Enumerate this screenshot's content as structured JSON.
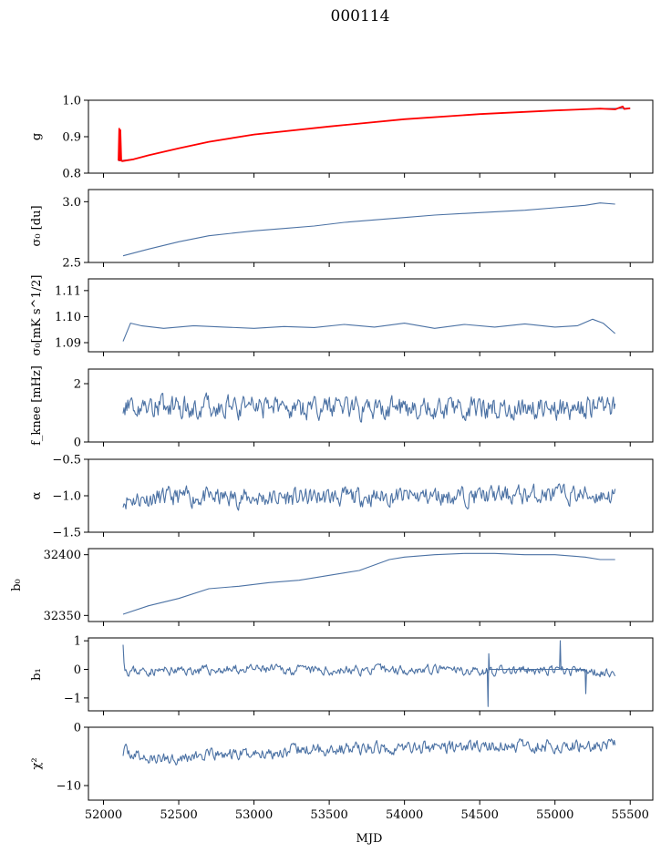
{
  "figure": {
    "title": "000114",
    "xlabel": "MJD"
  },
  "colors": {
    "series": "#4c72a4",
    "gain_overlay": "#ff0000"
  },
  "chart_data": [
    {
      "type": "line",
      "ylabel": "g",
      "ylim": [
        0.8,
        1.0
      ],
      "yticks": [
        0.8,
        0.9,
        1.0
      ],
      "ytick_labels": [
        "0.8",
        "0.9",
        "1.0"
      ],
      "xlim": [
        51900,
        55650
      ],
      "series": [
        {
          "color": "#4c72a4",
          "x": [
            52100,
            52200,
            52300,
            52500,
            52700,
            53000,
            53500,
            54000,
            54500,
            55000,
            55300,
            55500
          ],
          "y": [
            0.834,
            0.838,
            0.849,
            0.868,
            0.886,
            0.906,
            0.928,
            0.948,
            0.962,
            0.972,
            0.977,
            0.978
          ]
        },
        {
          "color": "#ff0000",
          "x": [
            52100,
            52105,
            52108,
            52112,
            52118,
            52125,
            52200,
            52300,
            52500,
            52700,
            53000,
            53500,
            54000,
            54500,
            55000,
            55300,
            55400,
            55450,
            55460,
            55500
          ],
          "y": [
            0.834,
            0.922,
            0.835,
            0.918,
            0.834,
            0.833,
            0.838,
            0.849,
            0.868,
            0.886,
            0.906,
            0.928,
            0.948,
            0.962,
            0.972,
            0.977,
            0.975,
            0.983,
            0.976,
            0.978
          ]
        }
      ]
    },
    {
      "type": "line",
      "ylabel": "σ₀ [du]",
      "ylim": [
        2.5,
        3.1
      ],
      "yticks": [
        2.5,
        3.0
      ],
      "ytick_labels": [
        "2.5",
        "3.0"
      ],
      "xlim": [
        51900,
        55650
      ],
      "series": [
        {
          "color": "#4c72a4",
          "x": [
            52130,
            52300,
            52500,
            52700,
            53000,
            53200,
            53400,
            53600,
            53800,
            54000,
            54200,
            54500,
            54800,
            55000,
            55200,
            55300,
            55400
          ],
          "y": [
            2.555,
            2.61,
            2.67,
            2.72,
            2.76,
            2.78,
            2.8,
            2.83,
            2.85,
            2.87,
            2.89,
            2.91,
            2.93,
            2.95,
            2.97,
            2.99,
            2.98
          ]
        }
      ]
    },
    {
      "type": "line",
      "ylabel": "σ₀[mK s^1/2]",
      "ylim": [
        1.0865,
        1.1145
      ],
      "yticks": [
        1.09,
        1.1,
        1.11
      ],
      "ytick_labels": [
        "1.09",
        "1.10",
        "1.11"
      ],
      "xlim": [
        51900,
        55650
      ],
      "series": [
        {
          "color": "#4c72a4",
          "x": [
            52130,
            52180,
            52250,
            52400,
            52600,
            52800,
            53000,
            53200,
            53400,
            53600,
            53800,
            54000,
            54200,
            54400,
            54600,
            54800,
            55000,
            55150,
            55250,
            55320,
            55400
          ],
          "y": [
            1.0905,
            1.0975,
            1.0965,
            1.0955,
            1.0965,
            1.096,
            1.0955,
            1.0962,
            1.0958,
            1.097,
            1.096,
            1.0975,
            1.0955,
            1.097,
            1.096,
            1.0972,
            1.096,
            1.0965,
            1.099,
            1.0975,
            1.0935
          ]
        }
      ]
    },
    {
      "type": "line",
      "ylabel": "f_knee [mHz]",
      "ylim": [
        0,
        2.5
      ],
      "yticks": [
        0,
        2
      ],
      "ytick_labels": [
        "0",
        "2"
      ],
      "xlim": [
        51900,
        55650
      ],
      "series": [
        {
          "color": "#4c72a4",
          "noise": {
            "seed": 4,
            "amp": 0.32
          },
          "x": [
            52130,
            52500,
            53000,
            53500,
            54000,
            54500,
            55000,
            55400
          ],
          "y": [
            1.3,
            1.2,
            1.18,
            1.15,
            1.15,
            1.18,
            1.15,
            1.15
          ]
        }
      ]
    },
    {
      "type": "line",
      "ylabel": "α",
      "ylim": [
        -1.5,
        -0.5
      ],
      "yticks": [
        -1.5,
        -1.0,
        -0.5
      ],
      "ytick_labels": [
        "−1.5",
        "−1.0",
        "−0.5"
      ],
      "xlim": [
        51900,
        55650
      ],
      "series": [
        {
          "color": "#4c72a4",
          "noise": {
            "seed": 11,
            "amp": 0.11
          },
          "x": [
            52130,
            52500,
            53000,
            53500,
            54000,
            54500,
            55000,
            55400
          ],
          "y": [
            -1.05,
            -1.02,
            -1.03,
            -1.02,
            -1.01,
            -1.0,
            -0.98,
            -1.0
          ]
        }
      ]
    },
    {
      "type": "line",
      "ylabel": "b₀",
      "ylim": [
        32345,
        32405
      ],
      "yticks": [
        32350,
        32400
      ],
      "ytick_labels": [
        "32350",
        "32400"
      ],
      "xlim": [
        51900,
        55650
      ],
      "series": [
        {
          "color": "#4c72a4",
          "x": [
            52130,
            52300,
            52500,
            52700,
            52900,
            53100,
            53300,
            53500,
            53700,
            53900,
            54000,
            54200,
            54400,
            54600,
            54800,
            55000,
            55200,
            55300,
            55400
          ],
          "y": [
            32351,
            32358,
            32364,
            32372,
            32374,
            32377,
            32379,
            32383,
            32387,
            32396,
            32398,
            32400,
            32401,
            32401,
            32400,
            32400,
            32398,
            32396,
            32396
          ]
        }
      ]
    },
    {
      "type": "line",
      "ylabel": "b₁",
      "ylim": [
        -1.45,
        1.1
      ],
      "yticks": [
        -1,
        0,
        1
      ],
      "ytick_labels": [
        "−1",
        "0",
        "1"
      ],
      "xlim": [
        51900,
        55650
      ],
      "series": [
        {
          "color": "#4c72a4",
          "noise": {
            "seed": 23,
            "amp": 0.14
          },
          "x": [
            52130,
            52140,
            52160,
            52500,
            53000,
            53500,
            54000,
            54500,
            55000,
            55400
          ],
          "y": [
            1.0,
            0.1,
            -0.05,
            -0.05,
            0.0,
            -0.05,
            0.0,
            -0.05,
            -0.05,
            -0.1
          ]
        },
        {
          "color": "#4c72a4",
          "x": [
            54550,
            54555,
            54560,
            54565,
            55030,
            55035,
            55040,
            55200,
            55205,
            55210
          ],
          "y": [
            0.0,
            -1.3,
            0.55,
            0.0,
            0.0,
            1.0,
            0.0,
            0.0,
            -0.85,
            0.0
          ]
        }
      ]
    },
    {
      "type": "line",
      "ylabel": "χ²",
      "ylim": [
        -12.5,
        0
      ],
      "yticks": [
        -10,
        0
      ],
      "ytick_labels": [
        "−10",
        "0"
      ],
      "xlim": [
        51900,
        55650
      ],
      "series": [
        {
          "color": "#4c72a4",
          "noise": {
            "seed": 37,
            "amp": 0.9
          },
          "x": [
            52130,
            52300,
            52600,
            53000,
            53400,
            53800,
            54200,
            54600,
            55000,
            55400
          ],
          "y": [
            -4.0,
            -5.5,
            -5.0,
            -4.5,
            -3.8,
            -3.6,
            -3.4,
            -3.3,
            -3.2,
            -3.2
          ]
        }
      ]
    }
  ],
  "x_axis": {
    "ticks": [
      52000,
      52500,
      53000,
      53500,
      54000,
      54500,
      55000,
      55500
    ],
    "tick_labels": [
      "52000",
      "52500",
      "53000",
      "53500",
      "54000",
      "54500",
      "55000",
      "55500"
    ]
  }
}
